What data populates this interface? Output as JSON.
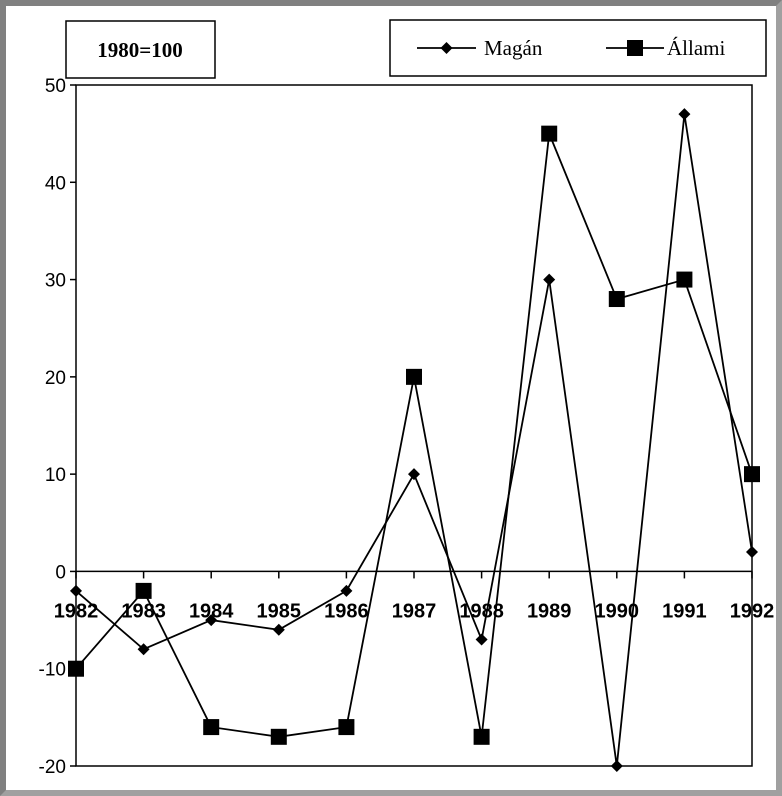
{
  "chart_data": {
    "type": "line",
    "categories": [
      "1982",
      "1983",
      "1984",
      "1985",
      "1986",
      "1987",
      "1988",
      "1989",
      "1990",
      "1991",
      "1992"
    ],
    "x_tick_labels": [
      "1982",
      "1983",
      "1984",
      "1985",
      "1986",
      "1987",
      "1988",
      "1989",
      "1990",
      "1991",
      "1992"
    ],
    "series": [
      {
        "name": "Magán",
        "marker": "diamond",
        "color": "#000000",
        "values": [
          -2,
          -8,
          -5,
          -6,
          -2,
          10,
          -7,
          30,
          -20,
          47,
          2
        ]
      },
      {
        "name": "Állami",
        "marker": "square",
        "color": "#000000",
        "values": [
          -10,
          -2,
          -16,
          -17,
          -16,
          20,
          -17,
          45,
          28,
          30,
          10
        ]
      }
    ],
    "title": "",
    "xlabel": "",
    "ylabel": "",
    "ylim": [
      -20,
      50
    ],
    "yticks": [
      50,
      40,
      30,
      20,
      10,
      0,
      -10,
      -20
    ],
    "annotation": "1980=100",
    "legend_position": "top-right",
    "grid": false
  }
}
